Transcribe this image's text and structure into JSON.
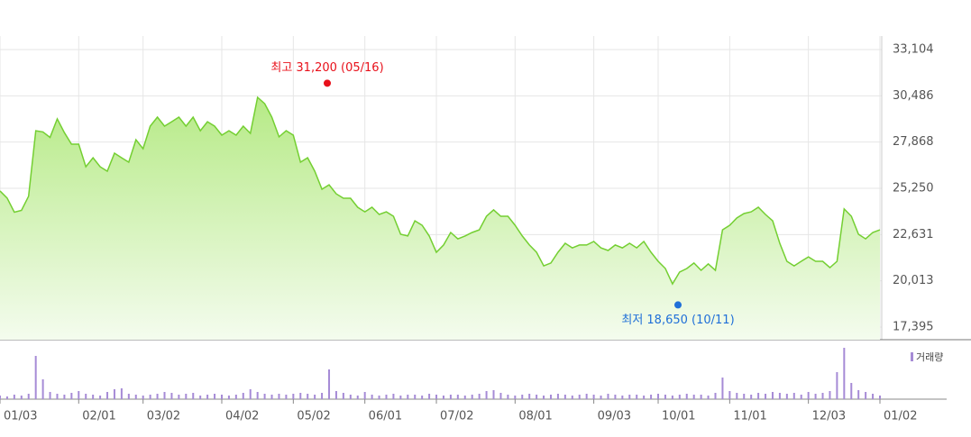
{
  "chart_data": {
    "type": "line",
    "categories": [
      "01/03",
      null,
      null,
      null,
      null,
      null,
      null,
      null,
      null,
      null,
      null,
      "02/01",
      null,
      null,
      null,
      null,
      null,
      null,
      null,
      null,
      "03/02",
      null,
      null,
      null,
      null,
      null,
      null,
      null,
      null,
      null,
      null,
      "04/02",
      null,
      null,
      null,
      null,
      null,
      null,
      null,
      null,
      null,
      "05/02",
      null,
      null,
      null,
      null,
      null,
      null,
      null,
      null,
      null,
      "06/01",
      null,
      null,
      null,
      null,
      null,
      null,
      null,
      null,
      null,
      "07/02",
      null,
      null,
      null,
      null,
      null,
      null,
      null,
      null,
      null,
      null,
      "08/01",
      null,
      null,
      null,
      null,
      null,
      null,
      null,
      null,
      null,
      null,
      "09/03",
      null,
      null,
      null,
      null,
      null,
      null,
      null,
      null,
      "10/01",
      null,
      null,
      null,
      null,
      null,
      null,
      null,
      null,
      null,
      "11/01",
      null,
      null,
      null,
      null,
      null,
      null,
      null,
      null,
      null,
      null,
      "12/03",
      null,
      null,
      null,
      null,
      null,
      null,
      null,
      null,
      null,
      "01/02"
    ],
    "series": [
      {
        "type": "area",
        "color": "#74cf32",
        "values": [
          25100,
          24700,
          23900,
          24000,
          24800,
          28510,
          28440,
          28130,
          29180,
          28400,
          27750,
          27750,
          26470,
          26980,
          26470,
          26220,
          27240,
          26980,
          26730,
          28000,
          27490,
          28770,
          29280,
          28770,
          29020,
          29280,
          28770,
          29280,
          28510,
          29020,
          28770,
          28260,
          28510,
          28260,
          28770,
          28360,
          30400,
          30040,
          29280,
          28160,
          28510,
          28260,
          26730,
          26980,
          26220,
          25200,
          25450,
          24940,
          24690,
          24690,
          24180,
          23920,
          24180,
          23770,
          23920,
          23670,
          22650,
          22550,
          23410,
          23160,
          22550,
          21630,
          22040,
          22750,
          22390,
          22550,
          22750,
          22900,
          23670,
          24030,
          23670,
          23670,
          23160,
          22550,
          22040,
          21630,
          20860,
          21020,
          21630,
          22140,
          21880,
          22040,
          22040,
          22240,
          21880,
          21730,
          22040,
          21880,
          22140,
          21880,
          22240,
          21630,
          21120,
          20710,
          19840,
          20510,
          20710,
          21020,
          20610,
          20970,
          20610,
          22900,
          23160,
          23570,
          23820,
          23920,
          24180,
          23770,
          23410,
          22140,
          21120,
          20860,
          21120,
          21370,
          21120,
          21120,
          20760,
          21120,
          24080,
          23670,
          22650,
          22390,
          22750,
          22900
        ]
      },
      {
        "type": "bar",
        "name": "거래량",
        "color": "#a68bd6",
        "values": [
          4,
          3,
          5,
          4,
          6,
          48,
          22,
          8,
          6,
          5,
          7,
          9,
          6,
          5,
          4,
          8,
          11,
          12,
          6,
          5,
          4,
          5,
          6,
          8,
          7,
          5,
          6,
          7,
          4,
          5,
          6,
          5,
          4,
          5,
          7,
          11,
          8,
          6,
          5,
          6,
          5,
          6,
          7,
          6,
          5,
          7,
          33,
          9,
          7,
          5,
          4,
          8,
          5,
          4,
          5,
          6,
          4,
          5,
          5,
          4,
          6,
          5,
          4,
          5,
          5,
          4,
          5,
          6,
          9,
          10,
          7,
          5,
          4,
          5,
          6,
          5,
          4,
          5,
          6,
          5,
          4,
          5,
          6,
          5,
          4,
          6,
          5,
          4,
          5,
          5,
          4,
          5,
          6,
          5,
          4,
          5,
          6,
          5,
          5,
          4,
          7,
          24,
          9,
          7,
          6,
          5,
          7,
          6,
          8,
          7,
          6,
          7,
          5,
          8,
          6,
          7,
          9,
          30,
          57,
          18,
          10,
          8,
          6,
          4
        ]
      }
    ],
    "ylim": [
      17395,
      33104
    ],
    "yticks": [
      {
        "value": 17395,
        "label": "17,395"
      },
      {
        "value": 20013,
        "label": "20,013"
      },
      {
        "value": 22631,
        "label": "22,631"
      },
      {
        "value": 25250,
        "label": "25,250"
      },
      {
        "value": 27868,
        "label": "27,868"
      },
      {
        "value": 30486,
        "label": "30,486"
      },
      {
        "value": 33104,
        "label": "33,104"
      }
    ],
    "grid": true,
    "annotations": [
      {
        "text": "최고 31,200 (05/16)",
        "value": 31200,
        "color": "#e8101a"
      },
      {
        "text": "최저 18,650 (10/11)",
        "value": 18650,
        "color": "#1f6fd8"
      }
    ]
  }
}
